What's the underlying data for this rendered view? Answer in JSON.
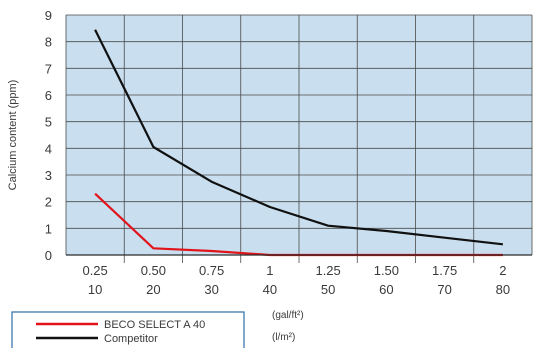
{
  "chart_data": {
    "type": "line",
    "ylabel": "Calcium content (ppm)",
    "ylim": [
      0,
      9
    ],
    "yticks": [
      "0",
      "1",
      "2",
      "3",
      "4",
      "5",
      "6",
      "7",
      "8",
      "9"
    ],
    "x_positions": [
      0.25,
      0.5,
      0.75,
      1,
      1.25,
      1.5,
      1.75,
      2
    ],
    "x_tick_labels_gal": [
      "0.25",
      "0.50",
      "0.75",
      "1",
      "1.25",
      "1.50",
      "1.75",
      "2"
    ],
    "x_tick_labels_l": [
      "10",
      "20",
      "30",
      "40",
      "50",
      "60",
      "70",
      "80"
    ],
    "x_unit_gal": "(gal/ft²)",
    "x_unit_l": "(l/m²)",
    "grid": true,
    "legend_placement": "bottom-left",
    "series": [
      {
        "name": "BECO SELECT A 40",
        "color": "#e1141b",
        "values": [
          2.3,
          0.25,
          0.15,
          0.0,
          0.0,
          0.0,
          0.0,
          0.0
        ]
      },
      {
        "name": "Competitor",
        "color": "#111111",
        "values": [
          8.45,
          4.05,
          2.75,
          1.8,
          1.1,
          0.9,
          0.65,
          0.4
        ]
      }
    ],
    "colors": {
      "plot_background": "#c9dfef",
      "grid": "#4a4a4a",
      "legend_border": "#2d6da8"
    }
  }
}
